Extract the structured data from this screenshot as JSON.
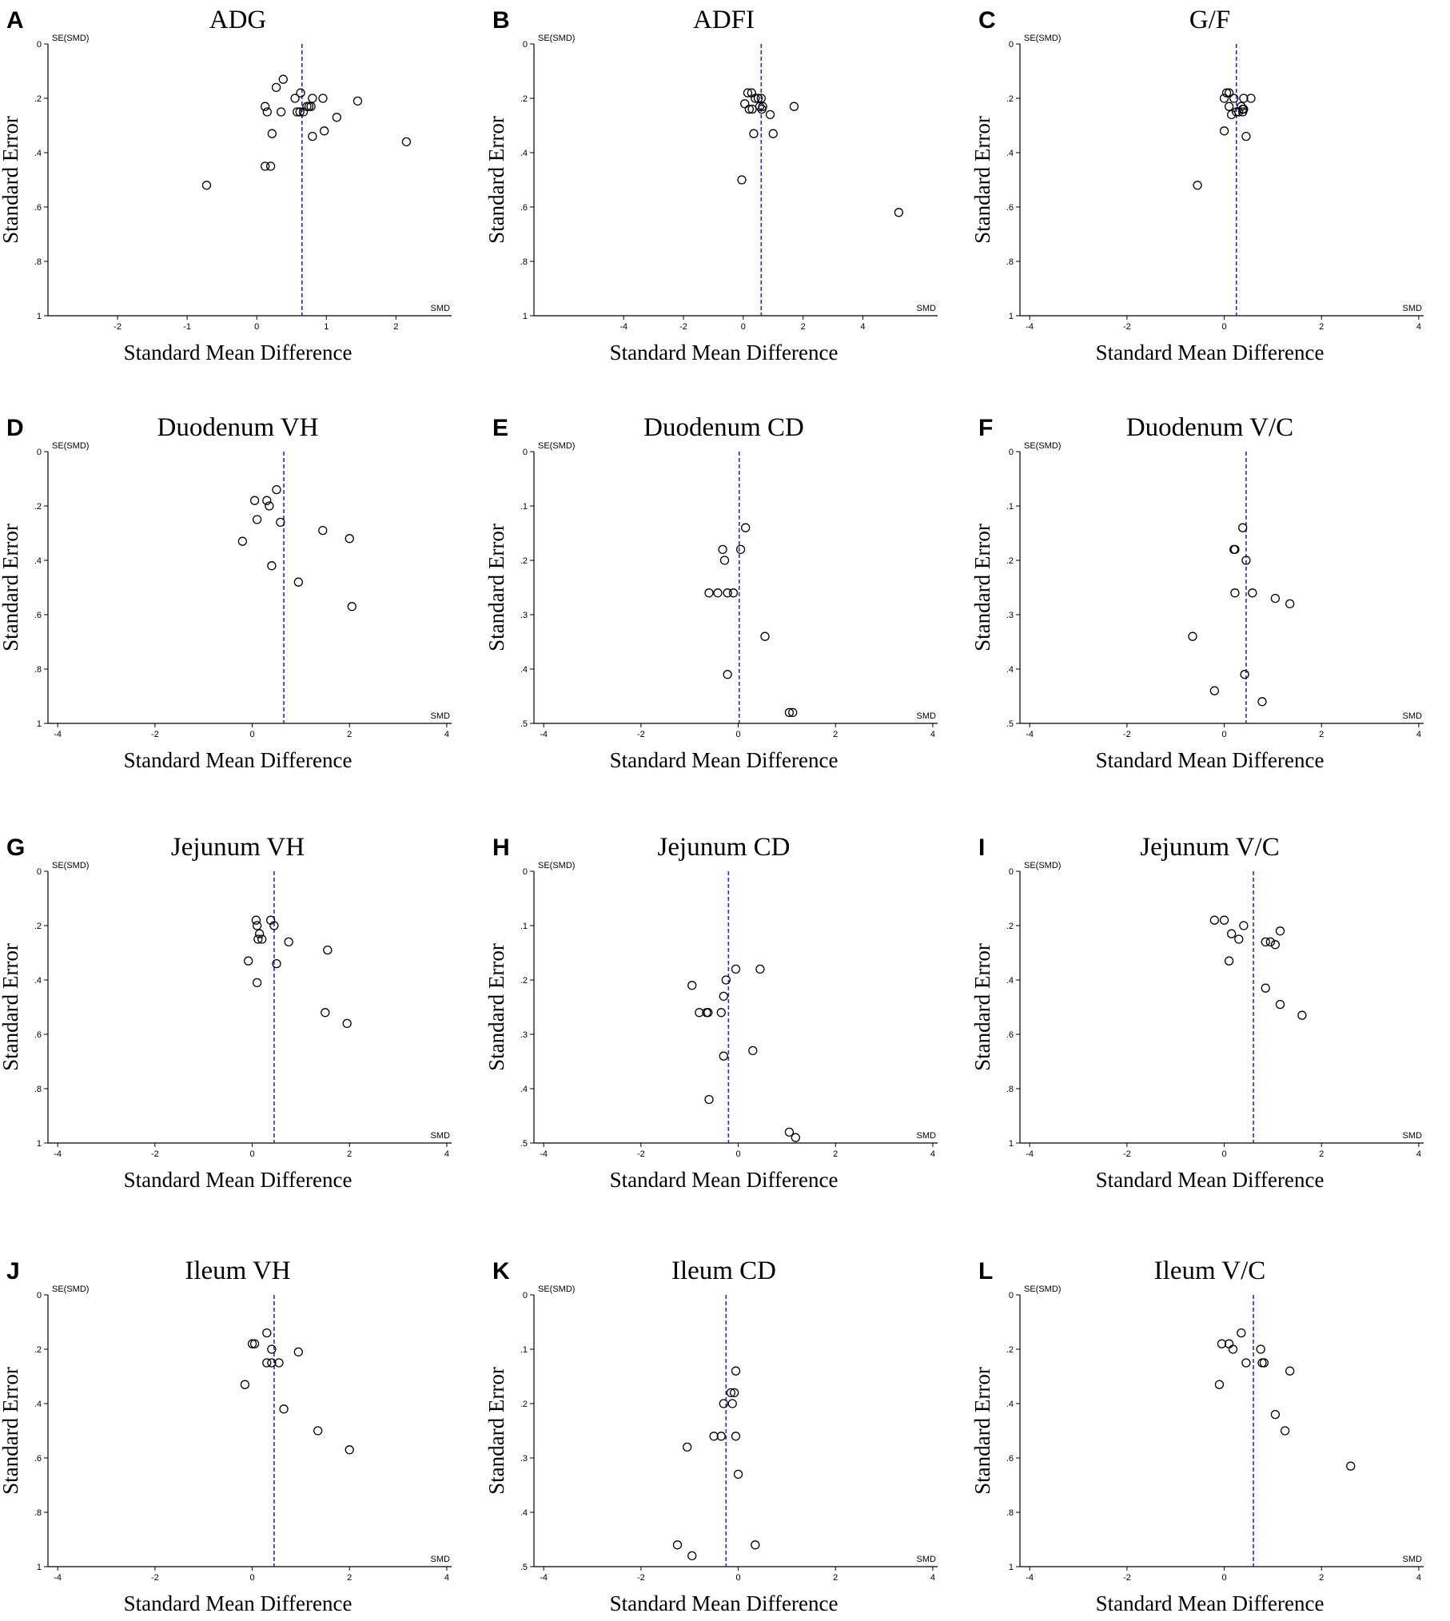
{
  "figure": {
    "dashed_line_color": "#1f2fbf",
    "point_color": "#000000",
    "axis_color": "#000000"
  },
  "chart_data": [
    {
      "id": "A",
      "letter": "A",
      "type": "scatter",
      "title": "ADG",
      "xlabel": "Standard Mean Difference",
      "ylabel": "Standard Error",
      "x_axis_name": "SMD",
      "y_axis_name": "SE(SMD)",
      "xlim": [
        -3,
        2.8
      ],
      "ylim": [
        0,
        1
      ],
      "xticks": [
        -2,
        -1,
        0,
        1,
        2
      ],
      "yticks": [
        0,
        0.2,
        0.4,
        0.6,
        0.8,
        1
      ],
      "pooled_smd": 0.65,
      "points": [
        [
          -0.72,
          0.52
        ],
        [
          0.12,
          0.45
        ],
        [
          0.2,
          0.45
        ],
        [
          0.12,
          0.23
        ],
        [
          0.15,
          0.25
        ],
        [
          0.22,
          0.33
        ],
        [
          0.28,
          0.16
        ],
        [
          0.35,
          0.25
        ],
        [
          0.38,
          0.13
        ],
        [
          0.55,
          0.2
        ],
        [
          0.58,
          0.25
        ],
        [
          0.62,
          0.25
        ],
        [
          0.63,
          0.18
        ],
        [
          0.67,
          0.25
        ],
        [
          0.72,
          0.23
        ],
        [
          0.75,
          0.23
        ],
        [
          0.78,
          0.23
        ],
        [
          0.8,
          0.2
        ],
        [
          0.8,
          0.34
        ],
        [
          0.95,
          0.2
        ],
        [
          0.97,
          0.32
        ],
        [
          1.15,
          0.27
        ],
        [
          1.45,
          0.21
        ],
        [
          2.15,
          0.36
        ]
      ]
    },
    {
      "id": "B",
      "letter": "B",
      "type": "scatter",
      "title": "ADFI",
      "xlabel": "Standard Mean Difference",
      "ylabel": "Standard Error",
      "x_axis_name": "SMD",
      "y_axis_name": "SE(SMD)",
      "xlim": [
        -7,
        6.5
      ],
      "ylim": [
        0,
        1
      ],
      "xticks": [
        -4,
        -2,
        0,
        2,
        4
      ],
      "yticks": [
        0,
        0.2,
        0.4,
        0.6,
        0.8,
        1
      ],
      "pooled_smd": 0.6,
      "points": [
        [
          -0.05,
          0.5
        ],
        [
          0.05,
          0.22
        ],
        [
          0.15,
          0.18
        ],
        [
          0.2,
          0.24
        ],
        [
          0.28,
          0.18
        ],
        [
          0.3,
          0.24
        ],
        [
          0.35,
          0.33
        ],
        [
          0.4,
          0.2
        ],
        [
          0.5,
          0.2
        ],
        [
          0.55,
          0.23
        ],
        [
          0.6,
          0.2
        ],
        [
          0.62,
          0.24
        ],
        [
          0.65,
          0.23
        ],
        [
          0.9,
          0.26
        ],
        [
          1.0,
          0.33
        ],
        [
          1.7,
          0.23
        ],
        [
          5.2,
          0.62
        ]
      ]
    },
    {
      "id": "C",
      "letter": "C",
      "type": "scatter",
      "title": "G/F",
      "xlabel": "Standard Mean Difference",
      "ylabel": "Standard Error",
      "x_axis_name": "SMD",
      "y_axis_name": "SE(SMD)",
      "xlim": [
        -4.2,
        4.1
      ],
      "ylim": [
        0,
        1
      ],
      "xticks": [
        -4,
        -2,
        0,
        2,
        4
      ],
      "yticks": [
        0,
        0.2,
        0.4,
        0.6,
        0.8,
        1
      ],
      "pooled_smd": 0.25,
      "points": [
        [
          -0.55,
          0.52
        ],
        [
          0.0,
          0.32
        ],
        [
          0.0,
          0.2
        ],
        [
          0.05,
          0.18
        ],
        [
          0.1,
          0.18
        ],
        [
          0.1,
          0.23
        ],
        [
          0.15,
          0.26
        ],
        [
          0.2,
          0.2
        ],
        [
          0.25,
          0.25
        ],
        [
          0.3,
          0.25
        ],
        [
          0.35,
          0.23
        ],
        [
          0.38,
          0.24
        ],
        [
          0.38,
          0.25
        ],
        [
          0.4,
          0.2
        ],
        [
          0.4,
          0.24
        ],
        [
          0.45,
          0.34
        ],
        [
          0.55,
          0.2
        ]
      ]
    },
    {
      "id": "D",
      "letter": "D",
      "type": "scatter",
      "title": "Duodenum VH",
      "xlabel": "Standard Mean Difference",
      "ylabel": "Standard Error",
      "x_axis_name": "SMD",
      "y_axis_name": "SE(SMD)",
      "xlim": [
        -4.2,
        4.1
      ],
      "ylim": [
        0,
        1
      ],
      "xticks": [
        -4,
        -2,
        0,
        2,
        4
      ],
      "yticks": [
        0,
        0.2,
        0.4,
        0.6,
        0.8,
        1
      ],
      "pooled_smd": 0.65,
      "points": [
        [
          -0.2,
          0.33
        ],
        [
          0.05,
          0.18
        ],
        [
          0.1,
          0.25
        ],
        [
          0.3,
          0.18
        ],
        [
          0.35,
          0.2
        ],
        [
          0.4,
          0.42
        ],
        [
          0.5,
          0.14
        ],
        [
          0.58,
          0.26
        ],
        [
          0.95,
          0.48
        ],
        [
          1.45,
          0.29
        ],
        [
          2.0,
          0.32
        ],
        [
          2.05,
          0.57
        ]
      ]
    },
    {
      "id": "E",
      "letter": "E",
      "type": "scatter",
      "title": "Duodenum CD",
      "xlabel": "Standard Mean Difference",
      "ylabel": "Standard Error",
      "x_axis_name": "SMD",
      "y_axis_name": "SE(SMD)",
      "xlim": [
        -4.2,
        4.1
      ],
      "ylim": [
        0,
        0.5
      ],
      "xticks": [
        -4,
        -2,
        0,
        2,
        4
      ],
      "yticks": [
        0,
        0.1,
        0.2,
        0.3,
        0.4,
        0.5
      ],
      "pooled_smd": 0.02,
      "points": [
        [
          -0.6,
          0.26
        ],
        [
          -0.42,
          0.26
        ],
        [
          -0.32,
          0.18
        ],
        [
          -0.28,
          0.2
        ],
        [
          -0.22,
          0.26
        ],
        [
          -0.1,
          0.26
        ],
        [
          -0.22,
          0.41
        ],
        [
          0.05,
          0.18
        ],
        [
          0.15,
          0.14
        ],
        [
          0.55,
          0.34
        ],
        [
          1.05,
          0.48
        ],
        [
          1.12,
          0.48
        ]
      ]
    },
    {
      "id": "F",
      "letter": "F",
      "type": "scatter",
      "title": "Duodenum V/C",
      "xlabel": "Standard Mean Difference",
      "ylabel": "Standard Error",
      "x_axis_name": "SMD",
      "y_axis_name": "SE(SMD)",
      "xlim": [
        -4.2,
        4.1
      ],
      "ylim": [
        0,
        0.5
      ],
      "xticks": [
        -4,
        -2,
        0,
        2,
        4
      ],
      "yticks": [
        0,
        0.1,
        0.2,
        0.3,
        0.4,
        0.5
      ],
      "pooled_smd": 0.45,
      "points": [
        [
          -0.65,
          0.34
        ],
        [
          -0.2,
          0.44
        ],
        [
          0.2,
          0.18
        ],
        [
          0.22,
          0.18
        ],
        [
          0.22,
          0.26
        ],
        [
          0.38,
          0.14
        ],
        [
          0.42,
          0.41
        ],
        [
          0.45,
          0.2
        ],
        [
          0.58,
          0.26
        ],
        [
          0.78,
          0.46
        ],
        [
          1.05,
          0.27
        ],
        [
          1.35,
          0.28
        ]
      ]
    },
    {
      "id": "G",
      "letter": "G",
      "type": "scatter",
      "title": "Jejunum VH",
      "xlabel": "Standard Mean Difference",
      "ylabel": "Standard Error",
      "x_axis_name": "SMD",
      "y_axis_name": "SE(SMD)",
      "xlim": [
        -4.2,
        4.1
      ],
      "ylim": [
        0,
        1
      ],
      "xticks": [
        -4,
        -2,
        0,
        2,
        4
      ],
      "yticks": [
        0,
        0.2,
        0.4,
        0.6,
        0.8,
        1
      ],
      "pooled_smd": 0.45,
      "points": [
        [
          -0.08,
          0.33
        ],
        [
          0.08,
          0.18
        ],
        [
          0.1,
          0.2
        ],
        [
          0.12,
          0.25
        ],
        [
          0.15,
          0.23
        ],
        [
          0.2,
          0.25
        ],
        [
          0.1,
          0.41
        ],
        [
          0.38,
          0.18
        ],
        [
          0.45,
          0.2
        ],
        [
          0.5,
          0.34
        ],
        [
          0.75,
          0.26
        ],
        [
          1.55,
          0.29
        ],
        [
          1.5,
          0.52
        ],
        [
          1.95,
          0.56
        ]
      ]
    },
    {
      "id": "H",
      "letter": "H",
      "type": "scatter",
      "title": "Jejunum CD",
      "xlabel": "Standard Mean Difference",
      "ylabel": "Standard Error",
      "x_axis_name": "SMD",
      "y_axis_name": "SE(SMD)",
      "xlim": [
        -4.2,
        4.1
      ],
      "ylim": [
        0,
        0.5
      ],
      "xticks": [
        -4,
        -2,
        0,
        2,
        4
      ],
      "yticks": [
        0,
        0.1,
        0.2,
        0.3,
        0.4,
        0.5
      ],
      "pooled_smd": -0.2,
      "points": [
        [
          -0.95,
          0.21
        ],
        [
          -0.8,
          0.26
        ],
        [
          -0.65,
          0.26
        ],
        [
          -0.62,
          0.26
        ],
        [
          -0.35,
          0.26
        ],
        [
          -0.3,
          0.23
        ],
        [
          -0.25,
          0.2
        ],
        [
          -0.3,
          0.34
        ],
        [
          -0.6,
          0.42
        ],
        [
          -0.05,
          0.18
        ],
        [
          0.3,
          0.33
        ],
        [
          0.45,
          0.18
        ],
        [
          1.05,
          0.48
        ],
        [
          1.18,
          0.49
        ]
      ]
    },
    {
      "id": "I",
      "letter": "I",
      "type": "scatter",
      "title": "Jejunum V/C",
      "xlabel": "Standard Mean Difference",
      "ylabel": "Standard Error",
      "x_axis_name": "SMD",
      "y_axis_name": "SE(SMD)",
      "xlim": [
        -4.2,
        4.1
      ],
      "ylim": [
        0,
        1
      ],
      "xticks": [
        -4,
        -2,
        0,
        2,
        4
      ],
      "yticks": [
        0,
        0.2,
        0.4,
        0.6,
        0.8,
        1
      ],
      "pooled_smd": 0.6,
      "points": [
        [
          -0.2,
          0.18
        ],
        [
          0.0,
          0.18
        ],
        [
          0.15,
          0.23
        ],
        [
          0.1,
          0.33
        ],
        [
          0.3,
          0.25
        ],
        [
          0.4,
          0.2
        ],
        [
          0.85,
          0.26
        ],
        [
          0.95,
          0.26
        ],
        [
          1.05,
          0.27
        ],
        [
          0.85,
          0.43
        ],
        [
          1.15,
          0.22
        ],
        [
          1.15,
          0.49
        ],
        [
          1.6,
          0.53
        ]
      ]
    },
    {
      "id": "J",
      "letter": "J",
      "type": "scatter",
      "title": "Ileum VH",
      "xlabel": "Standard Mean Difference",
      "ylabel": "Standard Error",
      "x_axis_name": "SMD",
      "y_axis_name": "SE(SMD)",
      "xlim": [
        -4.2,
        4.1
      ],
      "ylim": [
        0,
        1
      ],
      "xticks": [
        -4,
        -2,
        0,
        2,
        4
      ],
      "yticks": [
        0,
        0.2,
        0.4,
        0.6,
        0.8,
        1
      ],
      "pooled_smd": 0.45,
      "points": [
        [
          -0.15,
          0.33
        ],
        [
          0.0,
          0.18
        ],
        [
          0.05,
          0.18
        ],
        [
          0.3,
          0.14
        ],
        [
          0.3,
          0.25
        ],
        [
          0.4,
          0.25
        ],
        [
          0.4,
          0.2
        ],
        [
          0.55,
          0.25
        ],
        [
          0.65,
          0.42
        ],
        [
          0.95,
          0.21
        ],
        [
          1.35,
          0.5
        ],
        [
          2.0,
          0.57
        ]
      ]
    },
    {
      "id": "K",
      "letter": "K",
      "type": "scatter",
      "title": "Ileum CD",
      "xlabel": "Standard Mean Difference",
      "ylabel": "Standard Error",
      "x_axis_name": "SMD",
      "y_axis_name": "SE(SMD)",
      "xlim": [
        -4.2,
        4.1
      ],
      "ylim": [
        0,
        0.5
      ],
      "xticks": [
        -4,
        -2,
        0,
        2,
        4
      ],
      "yticks": [
        0,
        0.1,
        0.2,
        0.3,
        0.4,
        0.5
      ],
      "pooled_smd": -0.25,
      "points": [
        [
          -1.05,
          0.28
        ],
        [
          -0.5,
          0.26
        ],
        [
          -0.35,
          0.26
        ],
        [
          -0.3,
          0.2
        ],
        [
          -0.15,
          0.18
        ],
        [
          -0.12,
          0.2
        ],
        [
          -0.08,
          0.18
        ],
        [
          -0.05,
          0.14
        ],
        [
          -0.05,
          0.26
        ],
        [
          0.0,
          0.33
        ],
        [
          0.35,
          0.46
        ],
        [
          -1.25,
          0.46
        ],
        [
          -0.95,
          0.48
        ]
      ]
    },
    {
      "id": "L",
      "letter": "L",
      "type": "scatter",
      "title": "Ileum V/C",
      "xlabel": "Standard Mean Difference",
      "ylabel": "Standard Error",
      "x_axis_name": "SMD",
      "y_axis_name": "SE(SMD)",
      "xlim": [
        -4.2,
        4.1
      ],
      "ylim": [
        0,
        1
      ],
      "xticks": [
        -4,
        -2,
        0,
        2,
        4
      ],
      "yticks": [
        0,
        0.2,
        0.4,
        0.6,
        0.8,
        1
      ],
      "pooled_smd": 0.6,
      "points": [
        [
          -0.1,
          0.33
        ],
        [
          -0.05,
          0.18
        ],
        [
          0.1,
          0.18
        ],
        [
          0.18,
          0.2
        ],
        [
          0.35,
          0.14
        ],
        [
          0.45,
          0.25
        ],
        [
          0.75,
          0.2
        ],
        [
          0.78,
          0.25
        ],
        [
          0.82,
          0.25
        ],
        [
          1.35,
          0.28
        ],
        [
          1.05,
          0.44
        ],
        [
          1.25,
          0.5
        ],
        [
          2.6,
          0.63
        ]
      ]
    }
  ]
}
